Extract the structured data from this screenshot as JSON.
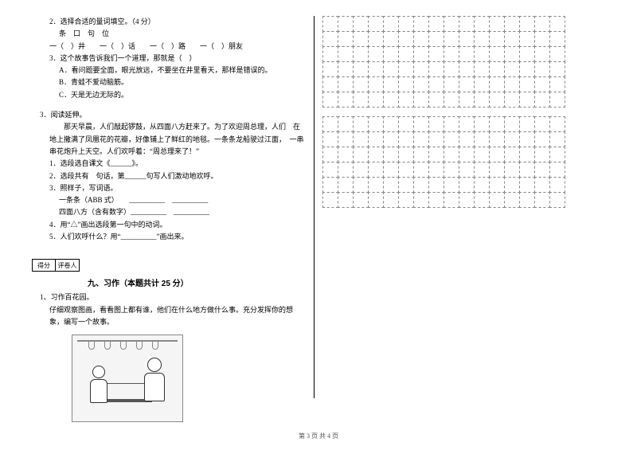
{
  "left": {
    "q2": {
      "title": "2．选择合适的量词填空。（4 分）",
      "options_line": "条　口　句　位",
      "fill_line_parts": [
        "一（　）井　　一（　）话　　一（　）路　　一（　）朋友"
      ]
    },
    "q3": {
      "title": "3．这个故事告诉我们一个道理，那就是（　）",
      "optA": "A．看问题要全面，眼光放远，不要坐在井里看天，那样是错误的。",
      "optB": "B．青蛙不爱动脑筋。",
      "optC": "C．天是无边无际的。"
    },
    "reading": {
      "head": "3．阅读延伸。",
      "para": "那天早晨，人们敲起锣鼓，从四面八方赶来了。为了欢迎周总理，人们　在地上撒满了凤凰花的花瓣，好像铺上了鲜红的地毯。一条条龙船驶过江面，　一串串花炮升上天空。人们欢呼着：“周总理来了！”",
      "sub1": "1．选段选自课文《______》。",
      "sub2": "2．选段共有　句话，第______句写人们激动地欢呼。",
      "sub3": "3．照样子，写词语。",
      "sub3a": "一条条（ABB 式）　　__________　__________",
      "sub3b": "四面八方（含有数字）__________　__________",
      "sub4": "4．用“△”画出选段第一句中的动词。",
      "sub5": "5．人们欢呼什么？用“__________”画出来。"
    },
    "score": {
      "c1": "得分",
      "c2": "评卷人"
    },
    "section9": "九、习作（本题共计 25 分）",
    "writing": {
      "head": "1、习作百花园。",
      "prompt": "仔细观察图画，看看图上都有谁，他们在什么地方做什么事。充分发挥你的想象，编写一个故事。"
    }
  },
  "grid": {
    "boxes": 2,
    "rows_per_box": 6,
    "cols": 16
  },
  "footer": "第 3 页 共 4 页"
}
